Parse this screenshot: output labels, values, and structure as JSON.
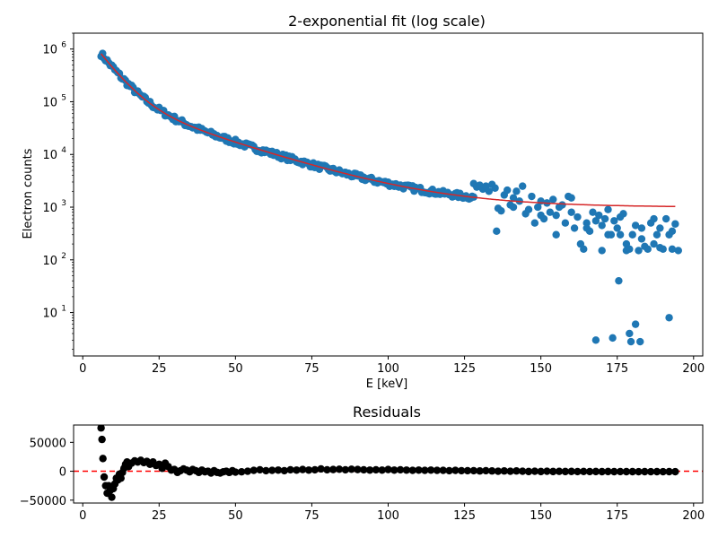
{
  "chart_data": [
    {
      "type": "scatter",
      "title": "2-exponential fit (log scale)",
      "xlabel": "E [keV]",
      "ylabel": "Electron counts",
      "xlim": [
        -3,
        203
      ],
      "ylim": [
        1.5,
        2000000
      ],
      "yscale": "log",
      "x_ticks": [
        0,
        25,
        50,
        75,
        100,
        125,
        150,
        175,
        200
      ],
      "y_ticks": [
        {
          "value": 10,
          "base": "10",
          "exp": "1"
        },
        {
          "value": 100,
          "base": "10",
          "exp": "2"
        },
        {
          "value": 1000,
          "base": "10",
          "exp": "3"
        },
        {
          "value": 10000,
          "base": "10",
          "exp": "4"
        },
        {
          "value": 100000,
          "base": "10",
          "exp": "5"
        },
        {
          "value": 1000000,
          "base": "10",
          "exp": "6"
        }
      ],
      "grid": false,
      "colors": {
        "data": "#1f77b4",
        "fit": "#d62728"
      },
      "fit_model": {
        "a1": 2100000,
        "t1": 5.5,
        "a2": 140000,
        "t2": 23,
        "c": 1000
      },
      "scatter_region_1": {
        "x_start": 6,
        "x_end": 128,
        "step": 0.5,
        "scatter_log10": 0.05
      },
      "tail_points": [
        [
          128,
          2800
        ],
        [
          129,
          2400
        ],
        [
          130,
          2600
        ],
        [
          131,
          2200
        ],
        [
          132,
          2500
        ],
        [
          133,
          2000
        ],
        [
          134,
          2700
        ],
        [
          135,
          2300
        ],
        [
          135.5,
          350
        ],
        [
          136,
          950
        ],
        [
          137,
          850
        ],
        [
          138,
          1700
        ],
        [
          139,
          2100
        ],
        [
          140,
          1100
        ],
        [
          141,
          1500
        ],
        [
          142,
          2000
        ],
        [
          143,
          1300
        ],
        [
          144,
          2500
        ],
        [
          145,
          750
        ],
        [
          146,
          900
        ],
        [
          147,
          1600
        ],
        [
          148,
          500
        ],
        [
          149,
          1000
        ],
        [
          150,
          1300
        ],
        [
          151,
          600
        ],
        [
          152,
          1200
        ],
        [
          153,
          800
        ],
        [
          154,
          1400
        ],
        [
          155,
          700
        ],
        [
          156,
          1000
        ],
        [
          157,
          1100
        ],
        [
          158,
          500
        ],
        [
          159,
          1600
        ],
        [
          160,
          800
        ],
        [
          161,
          400
        ],
        [
          162,
          650
        ],
        [
          163,
          200
        ],
        [
          164,
          160
        ],
        [
          165,
          500
        ],
        [
          166,
          350
        ],
        [
          167,
          800
        ],
        [
          168,
          550
        ],
        [
          169,
          700
        ],
        [
          170,
          150
        ],
        [
          171,
          600
        ],
        [
          172,
          900
        ],
        [
          173,
          300
        ],
        [
          174,
          550
        ],
        [
          175,
          400
        ],
        [
          176,
          650
        ],
        [
          177,
          750
        ],
        [
          178,
          200
        ],
        [
          179,
          160
        ],
        [
          180,
          300
        ],
        [
          181,
          450
        ],
        [
          182,
          150
        ],
        [
          183,
          250
        ],
        [
          184,
          180
        ],
        [
          185,
          160
        ],
        [
          186,
          500
        ],
        [
          187,
          600
        ],
        [
          188,
          300
        ],
        [
          189,
          170
        ],
        [
          190,
          160
        ],
        [
          191,
          600
        ],
        [
          192,
          300
        ],
        [
          193,
          350
        ],
        [
          194,
          480
        ],
        [
          195,
          150
        ],
        [
          168,
          3
        ],
        [
          173.5,
          3.3
        ],
        [
          175.5,
          40
        ],
        [
          179,
          4
        ],
        [
          179.5,
          2.8
        ],
        [
          181,
          6
        ],
        [
          182.5,
          2.8
        ],
        [
          192,
          8
        ],
        [
          141,
          1000
        ],
        [
          150,
          700
        ],
        [
          155,
          300
        ],
        [
          160,
          1500
        ],
        [
          165,
          400
        ],
        [
          170,
          450
        ],
        [
          172,
          300
        ],
        [
          176,
          300
        ],
        [
          178,
          150
        ],
        [
          183,
          400
        ],
        [
          187,
          200
        ],
        [
          189,
          400
        ],
        [
          193,
          160
        ]
      ]
    },
    {
      "type": "scatter",
      "title": "Residuals",
      "xlim": [
        -3,
        203
      ],
      "ylim": [
        -55000,
        80000
      ],
      "x_ticks": [
        0,
        25,
        50,
        75,
        100,
        125,
        150,
        175,
        200
      ],
      "y_ticks": [
        50000,
        0,
        -50000
      ],
      "reference_line": {
        "y": 0,
        "color": "#ff0000",
        "style": "dashed"
      },
      "colors": {
        "points": "#000000"
      },
      "points": [
        [
          6,
          75000
        ],
        [
          6.3,
          55000
        ],
        [
          6.6,
          22000
        ],
        [
          7,
          -10000
        ],
        [
          7.5,
          -25000
        ],
        [
          8,
          -38000
        ],
        [
          8.5,
          -25000
        ],
        [
          9,
          -33000
        ],
        [
          9.5,
          -45000
        ],
        [
          10,
          -30000
        ],
        [
          10.5,
          -22000
        ],
        [
          11,
          -12000
        ],
        [
          11.5,
          -15000
        ],
        [
          12,
          -5000
        ],
        [
          12.5,
          -12000
        ],
        [
          13,
          -2000
        ],
        [
          13.5,
          5000
        ],
        [
          14,
          12000
        ],
        [
          14.5,
          16000
        ],
        [
          15,
          8000
        ],
        [
          16,
          14000
        ],
        [
          17,
          18000
        ],
        [
          18,
          16000
        ],
        [
          19,
          19000
        ],
        [
          20,
          15000
        ],
        [
          21,
          17000
        ],
        [
          22,
          12000
        ],
        [
          23,
          16000
        ],
        [
          24,
          10000
        ],
        [
          25,
          12000
        ],
        [
          26,
          5000
        ],
        [
          27,
          14000
        ],
        [
          28,
          8000
        ],
        [
          29,
          2000
        ],
        [
          30,
          3000
        ],
        [
          31,
          -2000
        ],
        [
          32,
          1000
        ],
        [
          33,
          4000
        ],
        [
          34,
          2000
        ],
        [
          35,
          -1000
        ],
        [
          36,
          3000
        ],
        [
          37,
          1000
        ],
        [
          38,
          -2000
        ],
        [
          39,
          2000
        ],
        [
          40,
          -1000
        ],
        [
          41,
          0
        ],
        [
          42,
          -3000
        ],
        [
          43,
          1000
        ],
        [
          44,
          -2000
        ],
        [
          45,
          -3000
        ],
        [
          46,
          -1000
        ],
        [
          47,
          0
        ],
        [
          48,
          -2000
        ],
        [
          49,
          1000
        ],
        [
          50,
          -1500
        ],
        [
          52,
          -1000
        ],
        [
          54,
          0
        ],
        [
          56,
          1500
        ],
        [
          58,
          2500
        ],
        [
          60,
          1000
        ],
        [
          62,
          1500
        ],
        [
          64,
          2000
        ],
        [
          66,
          1000
        ],
        [
          68,
          2500
        ],
        [
          70,
          2000
        ],
        [
          72,
          3000
        ],
        [
          74,
          2000
        ],
        [
          76,
          2500
        ],
        [
          78,
          4000
        ],
        [
          80,
          2500
        ],
        [
          82,
          3000
        ],
        [
          84,
          3500
        ],
        [
          86,
          2500
        ],
        [
          88,
          3500
        ],
        [
          90,
          3000
        ],
        [
          92,
          2500
        ],
        [
          94,
          2000
        ],
        [
          96,
          2500
        ],
        [
          98,
          2000
        ],
        [
          100,
          3000
        ],
        [
          102,
          2000
        ],
        [
          104,
          2500
        ],
        [
          106,
          2000
        ],
        [
          108,
          1500
        ],
        [
          110,
          2000
        ],
        [
          112,
          1500
        ],
        [
          114,
          2000
        ],
        [
          116,
          1500
        ],
        [
          118,
          1500
        ],
        [
          120,
          1000
        ],
        [
          122,
          1500
        ],
        [
          124,
          1000
        ],
        [
          126,
          1000
        ],
        [
          128,
          1000
        ],
        [
          130,
          500
        ],
        [
          132,
          1000
        ],
        [
          134,
          500
        ],
        [
          136,
          0
        ],
        [
          138,
          500
        ],
        [
          140,
          0
        ],
        [
          142,
          500
        ],
        [
          144,
          0
        ],
        [
          146,
          -500
        ],
        [
          148,
          0
        ],
        [
          150,
          -500
        ],
        [
          152,
          0
        ],
        [
          154,
          -500
        ],
        [
          156,
          -200
        ],
        [
          158,
          -500
        ],
        [
          160,
          -300
        ],
        [
          162,
          -600
        ],
        [
          164,
          -400
        ],
        [
          166,
          -600
        ],
        [
          168,
          -500
        ],
        [
          170,
          -700
        ],
        [
          172,
          -500
        ],
        [
          174,
          -700
        ],
        [
          176,
          -600
        ],
        [
          178,
          -700
        ],
        [
          180,
          -700
        ],
        [
          182,
          -800
        ],
        [
          184,
          -700
        ],
        [
          186,
          -800
        ],
        [
          188,
          -700
        ],
        [
          190,
          -800
        ],
        [
          192,
          -700
        ],
        [
          194,
          -800
        ]
      ]
    }
  ]
}
